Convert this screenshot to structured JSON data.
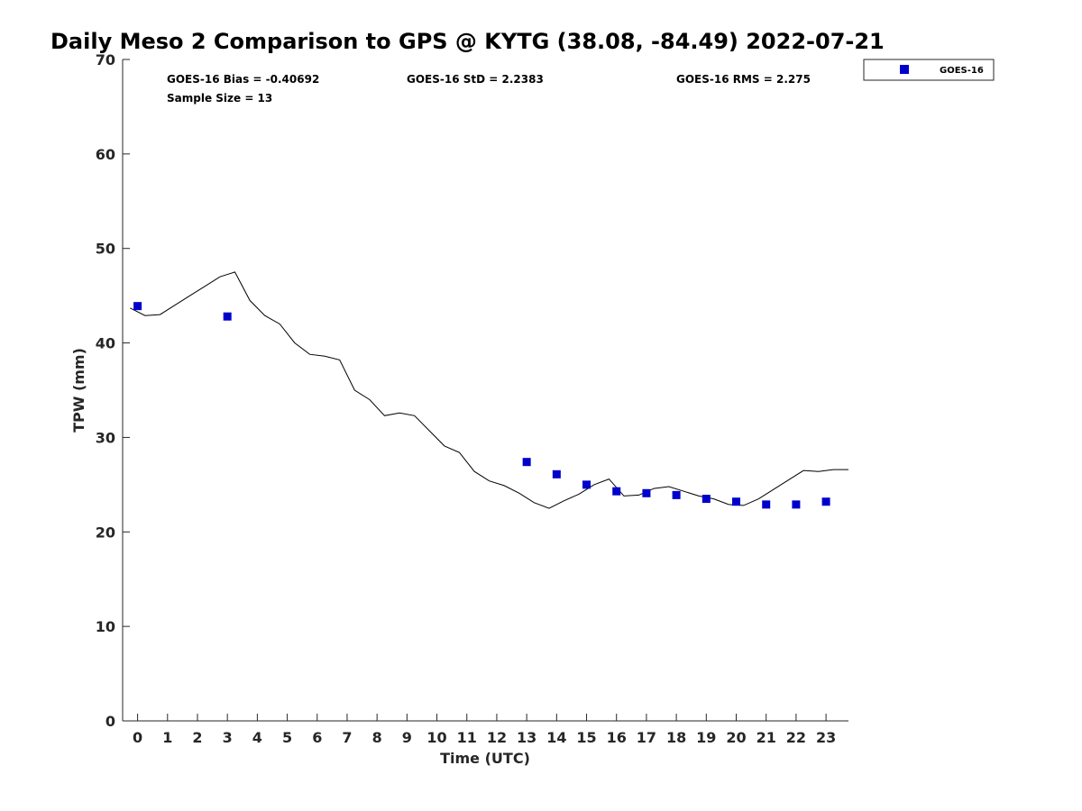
{
  "chart_data": {
    "type": "scatter",
    "title": "Daily Meso 2 Comparison to GPS @ KYTG (38.08, -84.49) 2022-07-21",
    "xlabel": "Time (UTC)",
    "ylabel": "TPW (mm)",
    "xlim": [
      -0.5,
      23.75
    ],
    "ylim": [
      0,
      70
    ],
    "x_ticks": [
      0,
      1,
      2,
      3,
      4,
      5,
      6,
      7,
      8,
      9,
      10,
      11,
      12,
      13,
      14,
      15,
      16,
      17,
      18,
      19,
      20,
      21,
      22,
      23
    ],
    "y_ticks": [
      0,
      10,
      20,
      30,
      40,
      50,
      60,
      70
    ],
    "grid": false,
    "legend_position": "top-right",
    "stats": {
      "bias": "GOES-16 Bias = -0.40692",
      "std": "GOES-16 StD = 2.2383",
      "rms": "GOES-16 RMS = 2.275",
      "sample": "Sample Size = 13"
    },
    "series": [
      {
        "name": "GOES-16",
        "kind": "scatter",
        "color": "#0000cc",
        "marker": "square",
        "x": [
          0,
          3,
          13,
          14,
          15,
          16,
          17,
          18,
          19,
          20,
          21,
          22,
          23
        ],
        "y": [
          43.9,
          42.8,
          27.4,
          26.1,
          25.0,
          24.3,
          24.1,
          23.9,
          23.5,
          23.2,
          22.9,
          22.9,
          23.2
        ]
      },
      {
        "kind": "line",
        "color": "#000000",
        "x": [
          -0.25,
          0.25,
          0.75,
          1.25,
          1.75,
          2.25,
          2.75,
          3.25,
          3.75,
          4.25,
          4.75,
          5.25,
          5.75,
          6.25,
          6.75,
          7.25,
          7.75,
          8.25,
          8.75,
          9.25,
          9.75,
          10.25,
          10.75,
          11.25,
          11.75,
          12.25,
          12.75,
          13.25,
          13.75,
          14.25,
          14.75,
          15.25,
          15.75,
          16.25,
          16.75,
          17.25,
          17.75,
          18.25,
          18.75,
          19.25,
          19.75,
          20.25,
          20.75,
          21.25,
          21.75,
          22.25,
          22.75,
          23.25,
          23.75
        ],
        "y": [
          43.7,
          42.9,
          43.0,
          44.0,
          45.0,
          46.0,
          47.0,
          47.5,
          44.5,
          42.9,
          42.0,
          40.0,
          38.8,
          38.6,
          38.2,
          35.0,
          34.0,
          32.3,
          32.6,
          32.3,
          30.7,
          29.1,
          28.4,
          26.4,
          25.4,
          24.9,
          24.1,
          23.1,
          22.5,
          23.3,
          24.0,
          25.0,
          25.6,
          23.8,
          23.9,
          24.6,
          24.8,
          24.3,
          23.8,
          23.5,
          22.9,
          22.8,
          23.5,
          24.5,
          25.5,
          26.5,
          26.4,
          26.6,
          26.6
        ]
      }
    ]
  }
}
